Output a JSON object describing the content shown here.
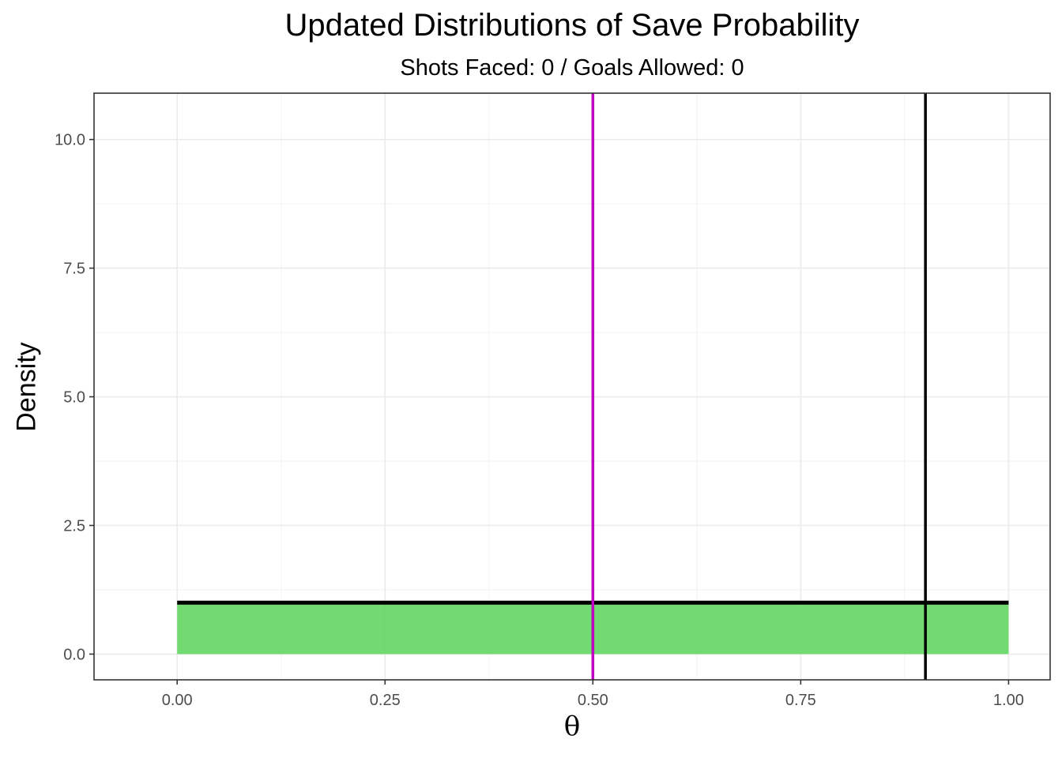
{
  "chart_data": {
    "type": "area",
    "title": "Updated Distributions of Save Probability",
    "subtitle": "Shots Faced: 0 / Goals Allowed: 0",
    "xlabel": "θ",
    "ylabel": "Density",
    "xlim": [
      -0.1,
      1.05
    ],
    "ylim": [
      -0.5,
      10.9
    ],
    "x_ticks": [
      0.0,
      0.25,
      0.5,
      0.75,
      1.0
    ],
    "x_tick_labels": [
      "0.00",
      "0.25",
      "0.50",
      "0.75",
      "1.00"
    ],
    "y_ticks": [
      0.0,
      2.5,
      5.0,
      7.5,
      10.0
    ],
    "y_tick_labels": [
      "0.0",
      "2.5",
      "5.0",
      "7.5",
      "10.0"
    ],
    "grid": true,
    "series": [
      {
        "name": "updated distribution",
        "kind": "area",
        "color": "#5dd55d",
        "x": [
          0.0,
          1.0
        ],
        "y": [
          1.0,
          1.0
        ]
      },
      {
        "name": "prior density",
        "kind": "line",
        "color": "#000000",
        "x": [
          0.0,
          1.0
        ],
        "y": [
          1.0,
          1.0
        ]
      }
    ],
    "vlines": [
      {
        "name": "magenta reference line",
        "x": 0.5,
        "color": "#c000c0"
      },
      {
        "name": "black reference line",
        "x": 0.9,
        "color": "#000000"
      }
    ]
  }
}
